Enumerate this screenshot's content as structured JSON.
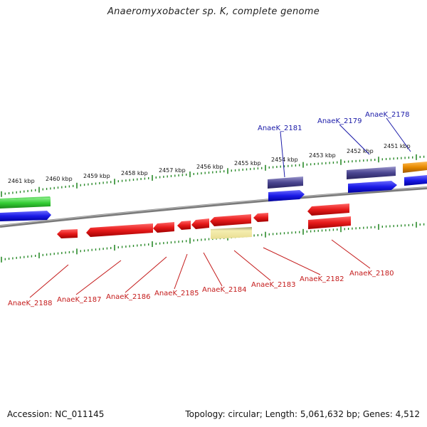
{
  "title": "Anaeromyxobacter sp. K, complete genome",
  "footer": {
    "accession": "Accession: NC_011145",
    "summary": "Topology: circular; Length: 5,061,632 bp; Genes: 4,512"
  },
  "scale_labels": [
    "2461 kbp",
    "2460 kbp",
    "2459 kbp",
    "2458 kbp",
    "2457 kbp",
    "2456 kbp",
    "2455 kbp",
    "2454 kbp",
    "2453 kbp",
    "2452 kbp",
    "2451 kbp"
  ],
  "top_gene_labels": [
    "AnaeK_2181",
    "AnaeK_2179",
    "AnaeK_2178"
  ],
  "bottom_gene_labels": [
    "AnaeK_2188",
    "AnaeK_2187",
    "AnaeK_2186",
    "AnaeK_2185",
    "AnaeK_2184",
    "AnaeK_2183",
    "AnaeK_2182",
    "AnaeK_2180"
  ],
  "colors": {
    "purple": "#4a4590",
    "blue": "#1a1ae6",
    "green": "#33cc33",
    "orange": "#e68a00",
    "red": "#e61a1a",
    "yellow": "#f0e6a0",
    "axis": "#888888",
    "tick": "#2a8a2a"
  }
}
